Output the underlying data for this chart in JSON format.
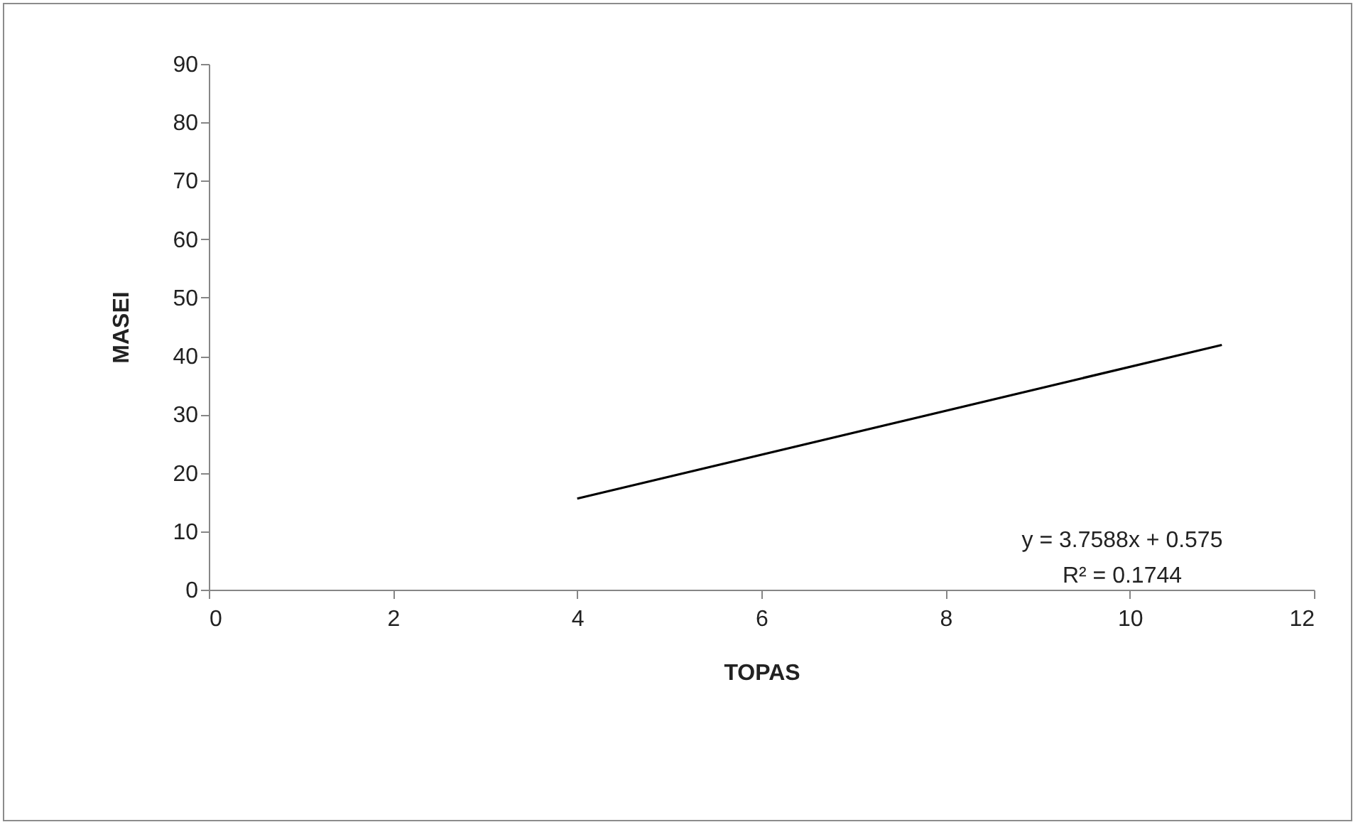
{
  "chart_data": {
    "type": "line",
    "xlabel": "TOPAS",
    "ylabel": "MASEI",
    "annotations": [
      "y = 3.7588x + 0.575",
      "R² = 0.1744"
    ],
    "series": [
      {
        "color": "#000000",
        "x": [
          4,
          11
        ],
        "values": [
          15.6,
          41.9
        ]
      }
    ],
    "xlim": [
      0,
      12
    ],
    "xticks": [
      0,
      2,
      4,
      6,
      8,
      10,
      12
    ],
    "ylim": [
      0,
      90
    ],
    "yticks": [
      0,
      10,
      20,
      30,
      40,
      50,
      60,
      70,
      80,
      90
    ],
    "line_style": "solid"
  }
}
